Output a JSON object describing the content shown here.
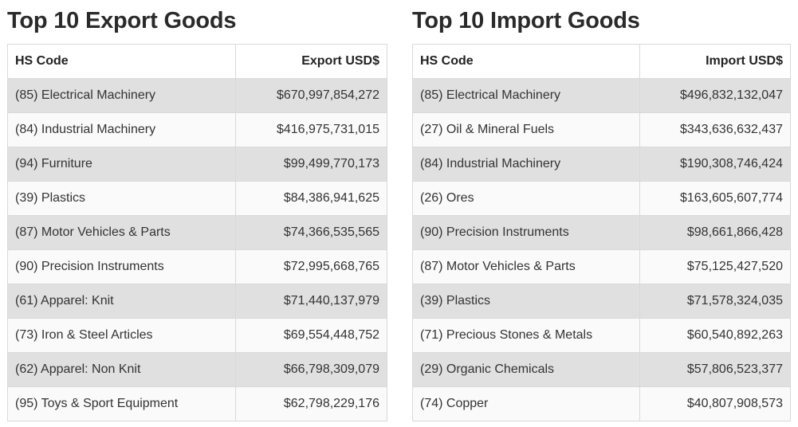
{
  "exports": {
    "title": "Top 10 Export Goods",
    "headers": {
      "code": "HS Code",
      "value": "Export USD$"
    },
    "rows": [
      {
        "code": "(85) Electrical Machinery",
        "value": "$670,997,854,272"
      },
      {
        "code": "(84) Industrial Machinery",
        "value": "$416,975,731,015"
      },
      {
        "code": "(94) Furniture",
        "value": "$99,499,770,173"
      },
      {
        "code": "(39) Plastics",
        "value": "$84,386,941,625"
      },
      {
        "code": "(87) Motor Vehicles & Parts",
        "value": "$74,366,535,565"
      },
      {
        "code": "(90) Precision Instruments",
        "value": "$72,995,668,765"
      },
      {
        "code": "(61) Apparel: Knit",
        "value": "$71,440,137,979"
      },
      {
        "code": "(73) Iron & Steel Articles",
        "value": "$69,554,448,752"
      },
      {
        "code": "(62) Apparel: Non Knit",
        "value": "$66,798,309,079"
      },
      {
        "code": "(95) Toys & Sport Equipment",
        "value": "$62,798,229,176"
      }
    ]
  },
  "imports": {
    "title": "Top 10 Import Goods",
    "headers": {
      "code": "HS Code",
      "value": "Import USD$"
    },
    "rows": [
      {
        "code": "(85) Electrical Machinery",
        "value": "$496,832,132,047"
      },
      {
        "code": "(27) Oil & Mineral Fuels",
        "value": "$343,636,632,437"
      },
      {
        "code": "(84) Industrial Machinery",
        "value": "$190,308,746,424"
      },
      {
        "code": "(26) Ores",
        "value": "$163,605,607,774"
      },
      {
        "code": "(90) Precision Instruments",
        "value": "$98,661,866,428"
      },
      {
        "code": "(87) Motor Vehicles & Parts",
        "value": "$75,125,427,520"
      },
      {
        "code": "(39) Plastics",
        "value": "$71,578,324,035"
      },
      {
        "code": "(71) Precious Stones & Metals",
        "value": "$60,540,892,263"
      },
      {
        "code": "(29) Organic Chemicals",
        "value": "$57,806,523,377"
      },
      {
        "code": "(74) Copper",
        "value": "$40,807,908,573"
      }
    ]
  },
  "colors": {
    "stripe": "#e0e0e0",
    "row": "#fafafa",
    "border": "#d9d9d9",
    "title": "#2a2a2a"
  }
}
